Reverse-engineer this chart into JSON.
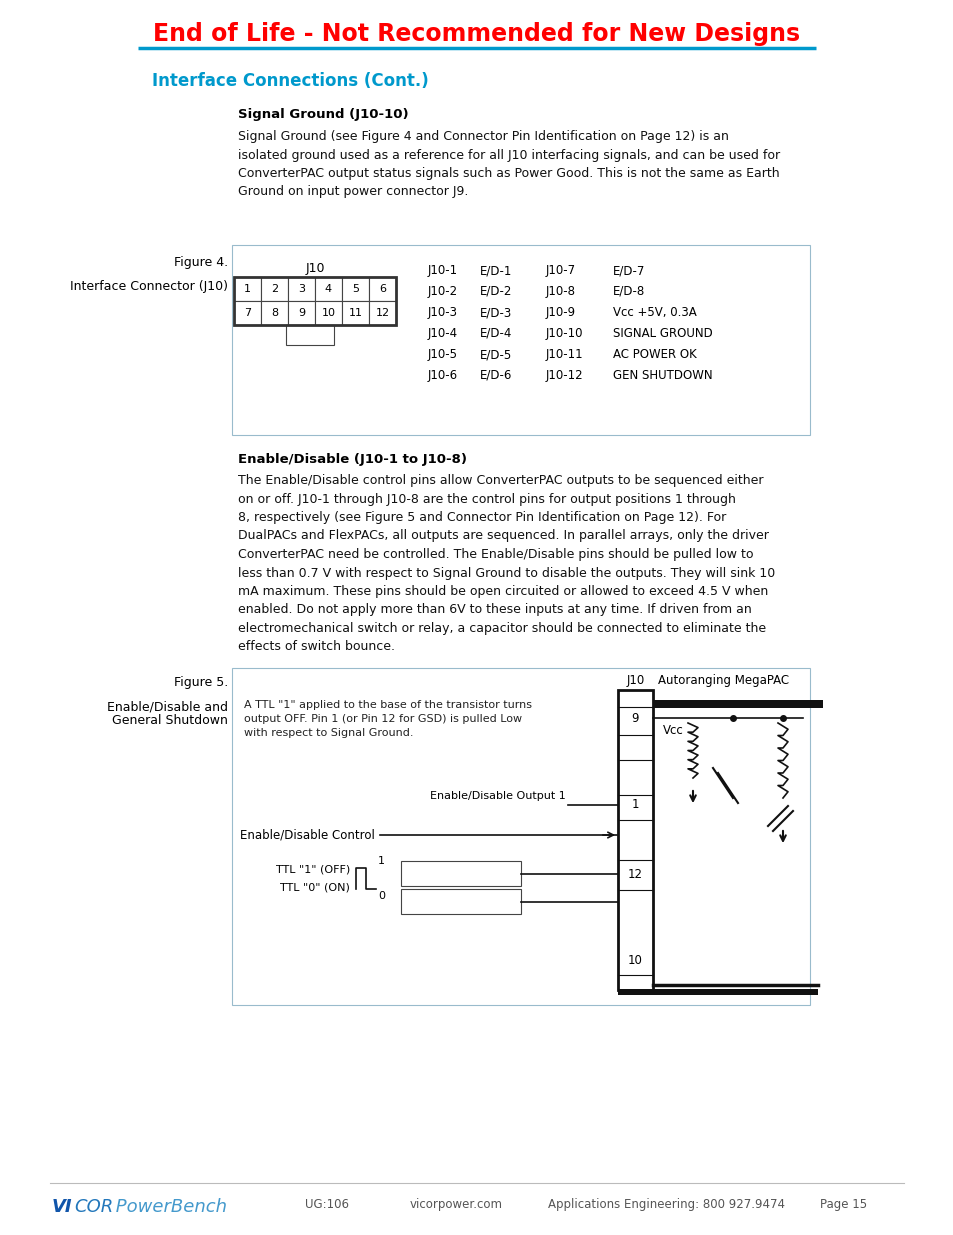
{
  "title": "End of Life - Not Recommended for New Designs",
  "title_color": "#FF0000",
  "title_fontsize": 17,
  "header_line_color": "#0099CC",
  "section1_heading": "Interface Connections (Cont.)",
  "section1_heading_color": "#0099CC",
  "section1_heading_fontsize": 12,
  "subsection1_title": "Signal Ground (J10-10)",
  "subsection1_text": "Signal Ground (see Figure 4 and Connector Pin Identification on Page 12) is an\nisolated ground used as a reference for all J10 interfacing signals, and can be used for\nConverterPAC output status signals such as Power Good. This is not the same as Earth\nGround on input power connector J9.",
  "figure4_label": "Figure 4.",
  "figure4_caption": "Interface Connector (J10)",
  "figure4_j10_label": "J10",
  "figure4_row1": [
    "1",
    "2",
    "3",
    "4",
    "5",
    "6"
  ],
  "figure4_row2": [
    "7",
    "8",
    "9",
    "10",
    "11",
    "12"
  ],
  "figure4_pins_left": [
    "J10-1",
    "J10-2",
    "J10-3",
    "J10-4",
    "J10-5",
    "J10-6"
  ],
  "figure4_sigs_left": [
    "E/D-1",
    "E/D-2",
    "E/D-3",
    "E/D-4",
    "E/D-5",
    "E/D-6"
  ],
  "figure4_pins_right": [
    "J10-7",
    "J10-8",
    "J10-9",
    "J10-10",
    "J10-11",
    "J10-12"
  ],
  "figure4_sigs_right": [
    "E/D-7",
    "E/D-8",
    "Vcc +5V, 0.3A",
    "SIGNAL GROUND",
    "AC POWER OK",
    "GEN SHUTDOWN"
  ],
  "subsection2_title": "Enable/Disable (J10-1 to J10-8)",
  "subsection2_text": "The Enable/Disable control pins allow ConverterPAC outputs to be sequenced either\non or off. J10-1 through J10-8 are the control pins for output positions 1 through\n8, respectively (see Figure 5 and Connector Pin Identification on Page 12). For\nDualPACs and FlexPACs, all outputs are sequenced. In parallel arrays, only the driver\nConverterPAC need be controlled. The Enable/Disable pins should be pulled low to\nless than 0.7 V with respect to Signal Ground to disable the outputs. They will sink 10\nmA maximum. These pins should be open circuited or allowed to exceed 4.5 V when\nenabled. Do not apply more than 6V to these inputs at any time. If driven from an\nelectromechanical switch or relay, a capacitor should be connected to eliminate the\neffects of switch bounce.",
  "figure5_label": "Figure 5.",
  "figure5_caption1": "Enable/Disable and",
  "figure5_caption2": "General Shutdown",
  "figure5_annotation": "A TTL \"1\" applied to the base of the transistor turns\noutput OFF. Pin 1 (or Pin 12 for GSD) is pulled Low\nwith respect to Signal Ground.",
  "footer_logo_vi": "VI",
  "footer_logo_cor": "COR",
  "footer_logo_pb": " PowerBench",
  "footer_ug": "UG:106",
  "footer_url": "vicorpower.com",
  "footer_app": "Applications Engineering: 800 927.9474",
  "footer_page": "Page 15",
  "body_text_color": "#000000",
  "body_fontsize": 9.5,
  "box_border_color": "#AACCDD",
  "background_color": "#FFFFFF"
}
